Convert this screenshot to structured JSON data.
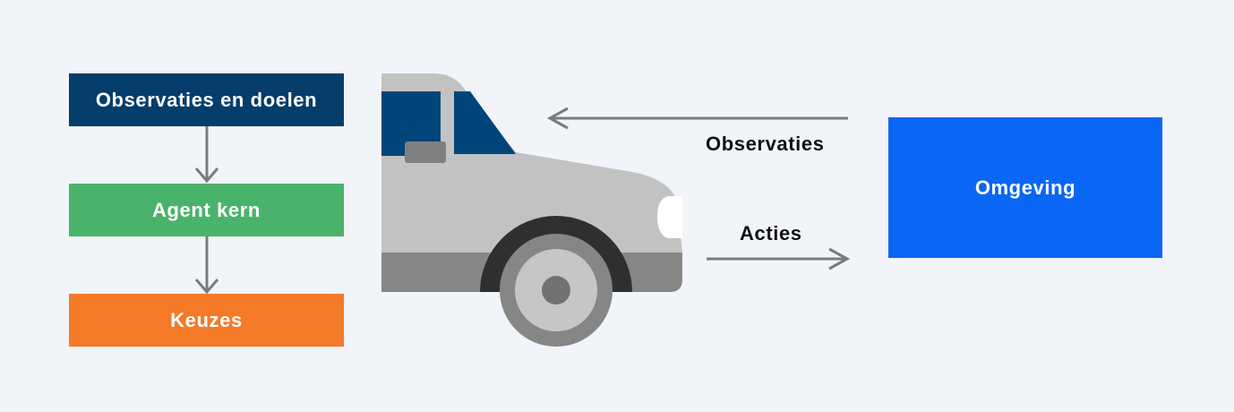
{
  "pipeline": {
    "observations_goals": "Observaties en doelen",
    "agent_core": "Agent kern",
    "choices": "Keuzes"
  },
  "environment": {
    "label": "Omgeving"
  },
  "flows": {
    "observations": "Observaties",
    "actions": "Acties"
  },
  "colors": {
    "background": "#f1f4f8",
    "observations_goals": "#053d6b",
    "agent_core": "#4ab36b",
    "choices": "#f47a27",
    "environment": "#0a66f5",
    "car_body": "#c2c2c2",
    "car_window": "#00457a",
    "arrow": "#7b7b7b"
  },
  "icons": [
    "car-icon",
    "arrow-down-icon",
    "arrow-left-icon",
    "arrow-right-icon"
  ]
}
